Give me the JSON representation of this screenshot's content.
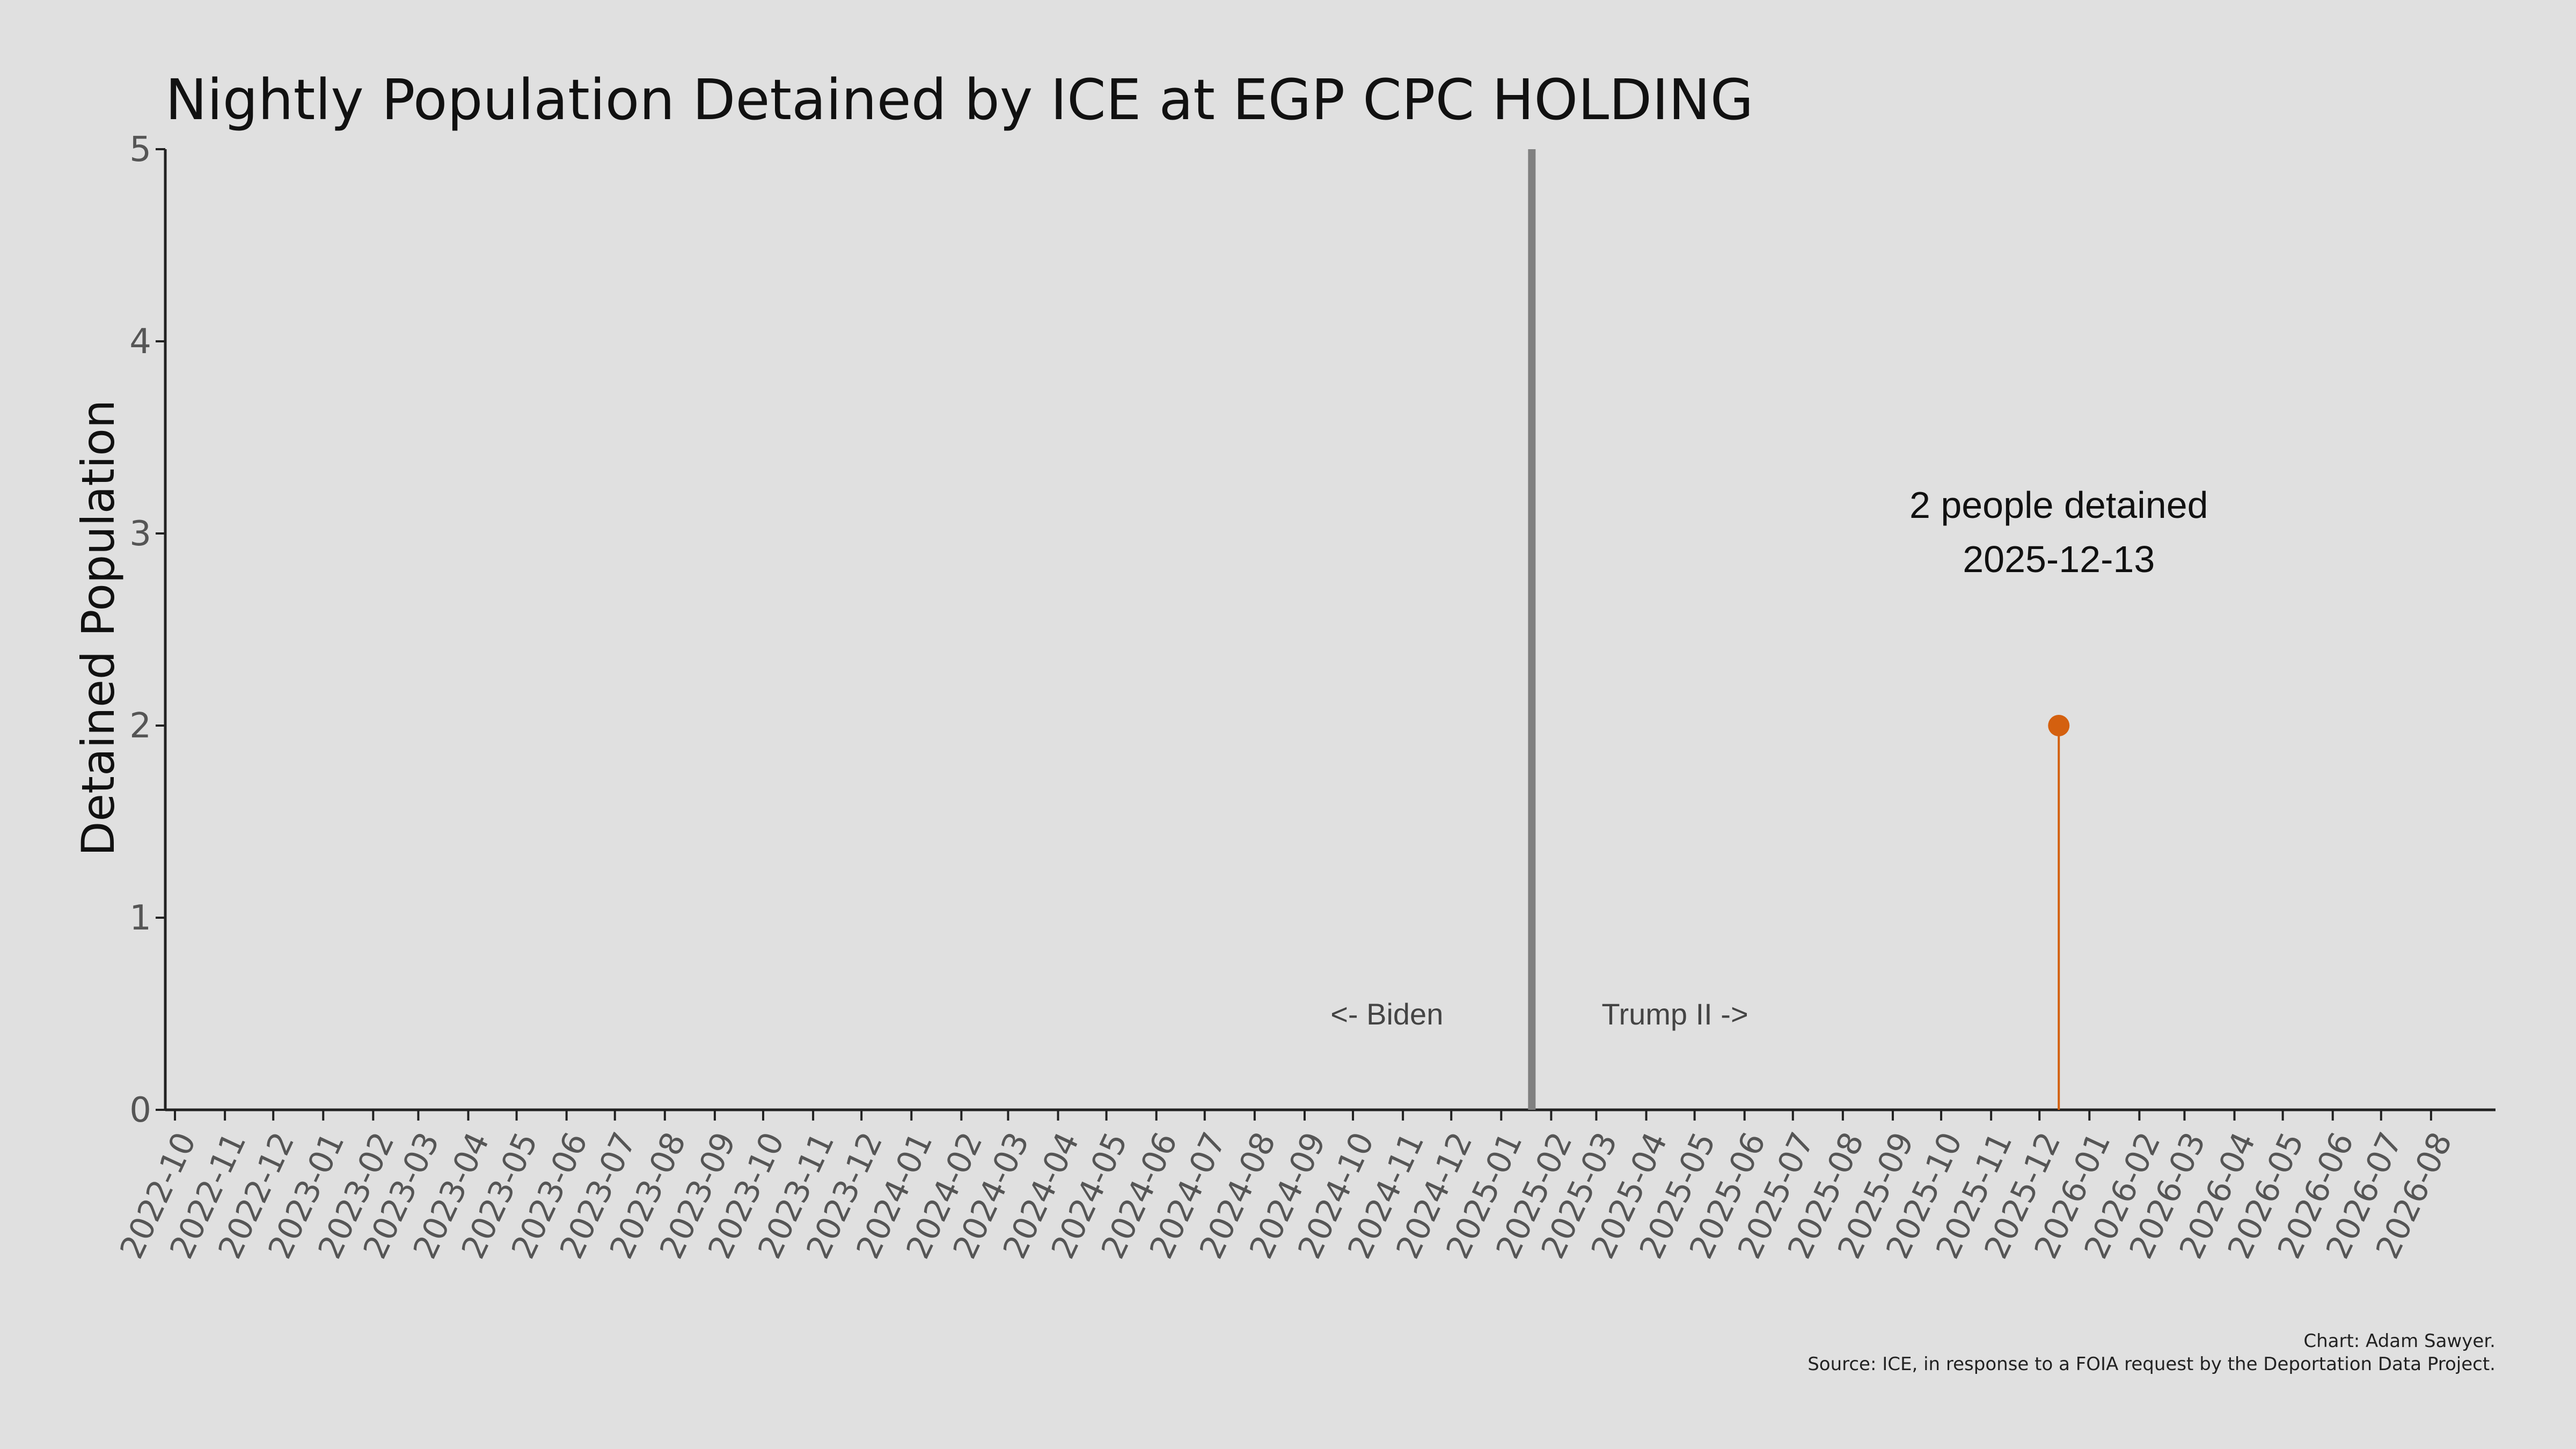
{
  "chart_data": {
    "type": "line",
    "title": "Nightly Population Detained by ICE at EGP CPC HOLDING",
    "xlabel": "",
    "ylabel": "Detained Population",
    "ylim": [
      0,
      5
    ],
    "yticks": [
      "0",
      "1",
      "2",
      "3",
      "4",
      "5"
    ],
    "xlim": [
      "2022-09-25",
      "2026-09-10"
    ],
    "x_tick_labels": [
      "2022-10",
      "2022-11",
      "2022-12",
      "2023-01",
      "2023-02",
      "2023-03",
      "2023-04",
      "2023-05",
      "2023-06",
      "2023-07",
      "2023-08",
      "2023-09",
      "2023-10",
      "2023-11",
      "2023-12",
      "2024-01",
      "2024-02",
      "2024-03",
      "2024-04",
      "2024-05",
      "2024-06",
      "2024-07",
      "2024-08",
      "2024-09",
      "2024-10",
      "2024-11",
      "2024-12",
      "2025-01",
      "2025-02",
      "2025-03",
      "2025-04",
      "2025-05",
      "2025-06",
      "2025-07",
      "2025-08",
      "2025-09",
      "2025-10",
      "2025-11",
      "2025-12",
      "2026-01",
      "2026-02",
      "2026-03",
      "2026-04",
      "2026-05",
      "2026-06",
      "2026-07",
      "2026-08"
    ],
    "series": [
      {
        "color": "#d4600f",
        "points": [
          {
            "x": "2025-12-13",
            "y": 2
          }
        ]
      }
    ],
    "reference_line": {
      "x": "2025-01-20",
      "color": "#808080"
    },
    "era_labels": {
      "left": "<- Biden",
      "right": "Trump II ->"
    },
    "annotation": {
      "line1": "2 people detained",
      "line2": "2025-12-13"
    },
    "grid": false
  },
  "credits": {
    "line1": "Chart: Adam Sawyer.",
    "line2": "Source: ICE, in response to a FOIA request by the Deportation Data Project."
  }
}
